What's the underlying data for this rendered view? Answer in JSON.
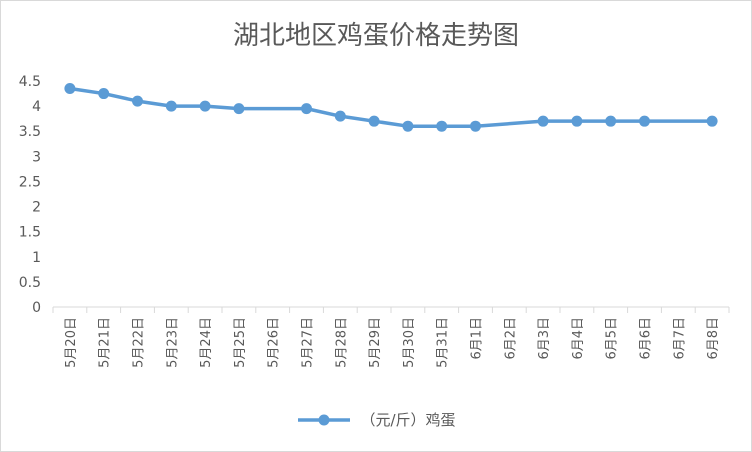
{
  "chart_data": {
    "type": "line",
    "title": "湖北地区鸡蛋价格走势图",
    "xlabel": "",
    "ylabel": "",
    "categories": [
      "5月20日",
      "5月21日",
      "5月22日",
      "5月23日",
      "5月24日",
      "5月25日",
      "5月26日",
      "5月27日",
      "5月28日",
      "5月29日",
      "5月30日",
      "5月31日",
      "6月1日",
      "6月2日",
      "6月3日",
      "6月4日",
      "6月5日",
      "6月6日",
      "6月7日",
      "6月8日"
    ],
    "series": [
      {
        "name": "（元/斤）鸡蛋",
        "values": [
          4.35,
          4.25,
          4.1,
          4.0,
          4.0,
          3.95,
          null,
          3.95,
          3.8,
          3.7,
          3.6,
          3.6,
          3.6,
          null,
          3.7,
          3.7,
          3.7,
          3.7,
          null,
          3.7
        ],
        "color": "#5b9bd5"
      }
    ],
    "ylim": [
      0,
      4.5
    ],
    "yticks": [
      0,
      0.5,
      1,
      1.5,
      2,
      2.5,
      3,
      3.5,
      4,
      4.5
    ],
    "ytick_labels": [
      "0",
      "0.5",
      "1",
      "1.5",
      "2",
      "2.5",
      "3",
      "3.5",
      "4",
      "4.5"
    ],
    "grid": false,
    "legend": "bottom",
    "line_connects_gaps": true
  }
}
